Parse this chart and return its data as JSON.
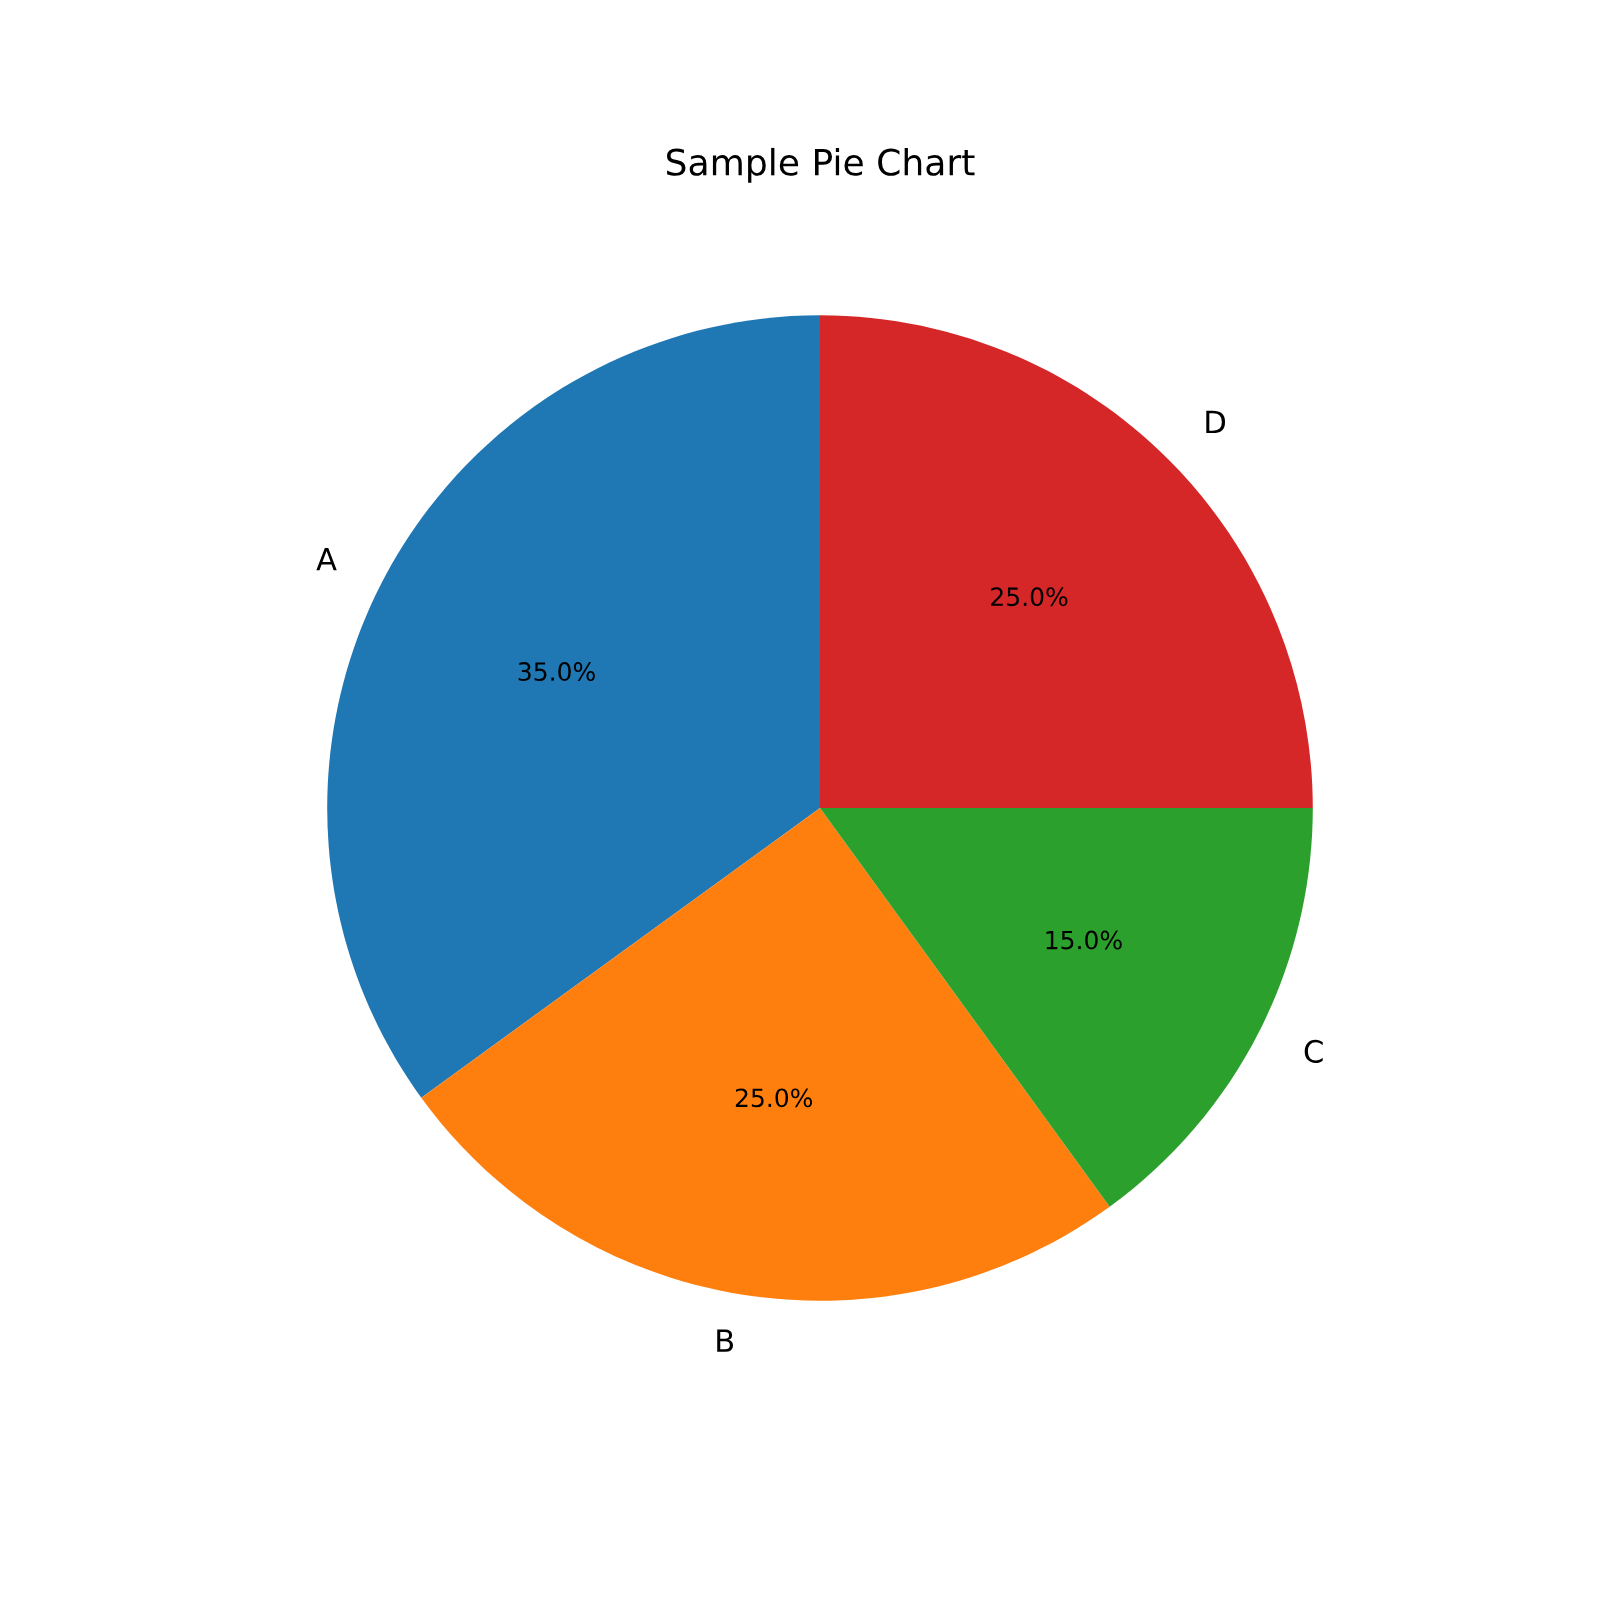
{
  "chart_data": {
    "type": "pie",
    "title": "Sample Pie Chart",
    "categories": [
      "A",
      "B",
      "C",
      "D"
    ],
    "values": [
      35,
      25,
      15,
      25
    ],
    "colors": [
      "#1f77b4",
      "#ff7f0e",
      "#2ca02c",
      "#d62728"
    ],
    "value_labels": [
      "35.0%",
      "25.0%",
      "15.0%",
      "25.0%"
    ]
  }
}
